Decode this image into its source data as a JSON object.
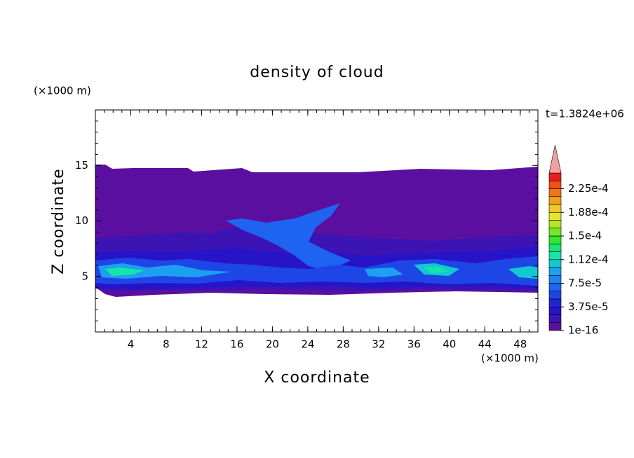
{
  "chart_data": {
    "type": "contour",
    "title": "density of cloud",
    "x_label": "X coordinate",
    "y_label": "Z coordinate",
    "x_unit": "(×1000 m)",
    "y_unit": "(×1000 m)",
    "annotation": "t=1.3824e+06",
    "xlim": [
      0,
      50
    ],
    "ylim": [
      0,
      20
    ],
    "xticks": [
      4,
      8,
      12,
      16,
      20,
      24,
      28,
      32,
      36,
      40,
      44,
      48
    ],
    "yticks": [
      5,
      10,
      15
    ],
    "colorbar": {
      "ticks": [
        {
          "value": 1e-16,
          "label": "1e-16"
        },
        {
          "value": 3.75e-05,
          "label": "3.75e-5"
        },
        {
          "value": 7.5e-05,
          "label": "7.5e-5"
        },
        {
          "value": 0.000112,
          "label": "1.12e-4"
        },
        {
          "value": 0.00015,
          "label": "1.5e-4"
        },
        {
          "value": 0.000188,
          "label": "1.88e-4"
        },
        {
          "value": 0.000225,
          "label": "2.25e-4"
        }
      ],
      "colors": [
        "#5a0fa0",
        "#3c14b4",
        "#2814c8",
        "#1e28d2",
        "#1e46e6",
        "#1e64f0",
        "#1e82f0",
        "#1ea0f0",
        "#14c8d2",
        "#14e6aa",
        "#14e678",
        "#32e632",
        "#78e628",
        "#b4e628",
        "#e6e628",
        "#f0c828",
        "#f0a01e",
        "#f07814",
        "#f05014",
        "#e61e1e"
      ],
      "extend_color": "#f0a0a0"
    }
  }
}
